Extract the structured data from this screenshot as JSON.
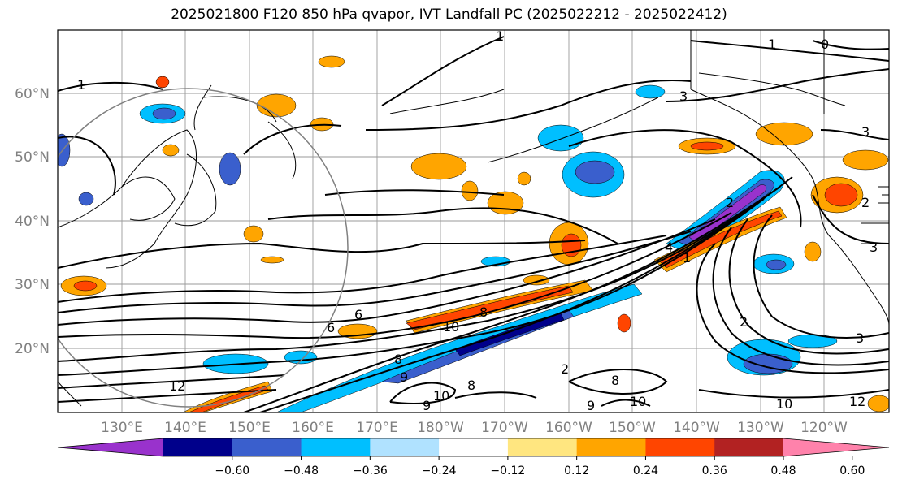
{
  "title": "2025021800 F120 850 hPa qvapor, IVT Landfall PC (2025022212 - 2025022412)",
  "lat_labels": [
    "60°N",
    "50°N",
    "40°N",
    "30°N",
    "20°N"
  ],
  "lon_labels": [
    "130°E",
    "140°E",
    "150°E",
    "160°E",
    "170°E",
    "180°W",
    "170°W",
    "160°W",
    "150°W",
    "140°W",
    "130°W",
    "120°W"
  ],
  "contour_labels": [
    "1",
    "1",
    "1",
    "3",
    "3",
    "3",
    "2",
    "2",
    "1",
    "4",
    "6",
    "6",
    "8",
    "10",
    "8",
    "9",
    "8",
    "9",
    "10",
    "12",
    "10",
    "10",
    "3",
    "2",
    "0",
    "12",
    "9",
    "8",
    "2"
  ],
  "colorbar": {
    "ticks": [
      "−0.60",
      "−0.48",
      "−0.36",
      "−0.24",
      "−0.12",
      "0.12",
      "0.24",
      "0.36",
      "0.48",
      "0.60"
    ],
    "colors": [
      "#9932CC",
      "#00008B",
      "#3A5FCD",
      "#00BFFF",
      "#B0E2FF",
      "#FFFFFF",
      "#FFE680",
      "#FFA500",
      "#FF4500",
      "#B22222",
      "#FF82AB"
    ]
  }
}
